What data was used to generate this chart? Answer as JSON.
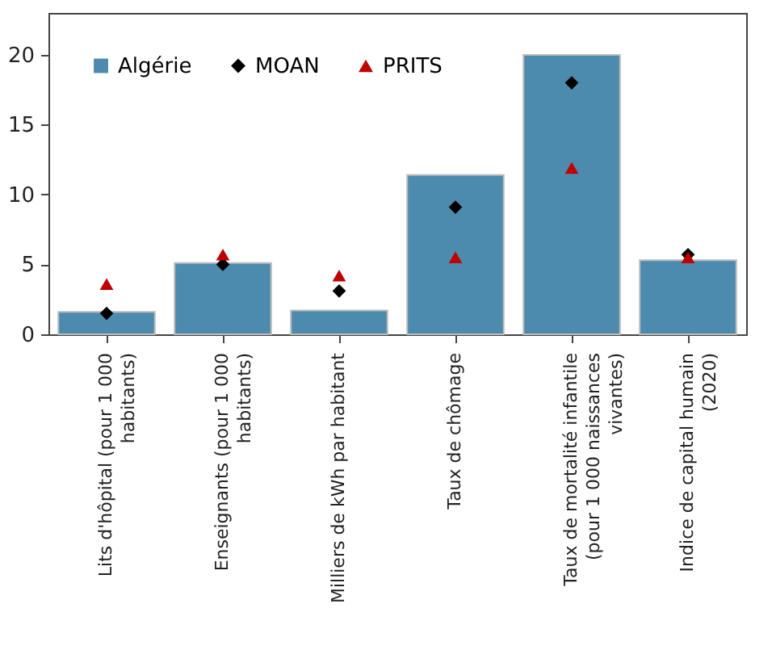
{
  "chart_data": {
    "type": "bar",
    "categories": [
      "Lits d'hôpital (pour 1 000 habitants)",
      "Enseignants (pour 1 000 habitants)",
      "Milliers de kWh par habitant",
      "Taux de chômage",
      "Taux de mortalité infantile (pour 1 000 naissances vivantes)",
      "Indice de capital humain (2020)"
    ],
    "series": [
      {
        "name": "Algérie",
        "type": "bar",
        "color": "#4d8bae",
        "values": [
          1.6,
          5.1,
          1.7,
          11.4,
          20,
          5.3
        ]
      },
      {
        "name": "MOAN",
        "type": "scatter",
        "marker": "diamond",
        "color": "#000000",
        "values": [
          1.5,
          5.0,
          3.1,
          9.1,
          18.0,
          5.7
        ]
      },
      {
        "name": "PRITS",
        "type": "scatter",
        "marker": "triangle",
        "color": "#c00000",
        "values": [
          3.6,
          5.7,
          4.2,
          5.5,
          11.9,
          5.5
        ]
      }
    ],
    "ylim": [
      0,
      23
    ],
    "yticks": [
      0,
      5,
      10,
      15,
      20
    ],
    "grid": false,
    "legend": "top left"
  }
}
